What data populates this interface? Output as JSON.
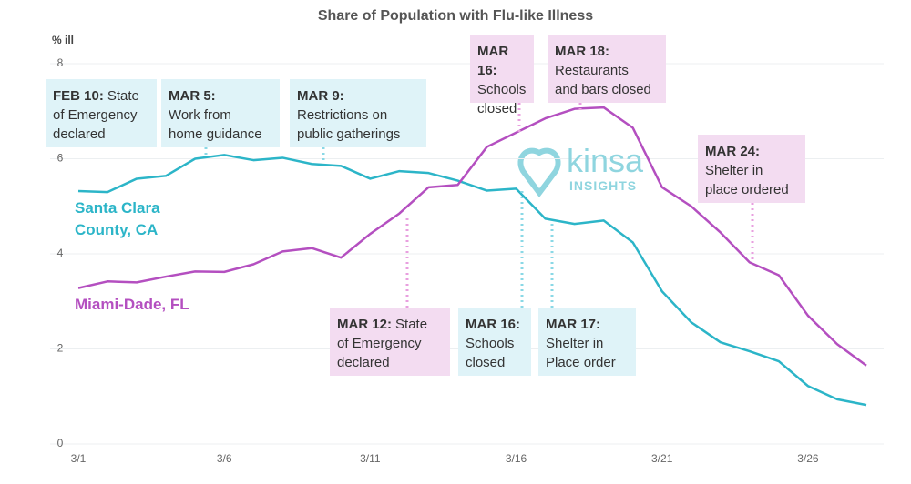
{
  "chart_data": {
    "type": "line",
    "title": "Share of Population with Flu-like Illness",
    "y_label": "% ill",
    "categories": [
      "3/1",
      null,
      null,
      null,
      null,
      "3/6",
      null,
      null,
      null,
      null,
      "3/11",
      null,
      null,
      null,
      null,
      "3/16",
      null,
      null,
      null,
      null,
      "3/21",
      null,
      null,
      null,
      null,
      "3/26",
      null,
      null
    ],
    "series": [
      {
        "name": "Santa Clara County, CA",
        "color": "#2cb5c8",
        "values": [
          5.32,
          5.3,
          5.58,
          5.64,
          6.0,
          6.08,
          5.97,
          6.02,
          5.89,
          5.85,
          5.58,
          5.74,
          5.7,
          5.54,
          5.33,
          5.37,
          4.74,
          4.63,
          4.7,
          4.24,
          3.21,
          2.56,
          2.14,
          1.95,
          1.74,
          1.22,
          0.94,
          0.82
        ]
      },
      {
        "name": "Miami-Dade, FL",
        "color": "#b44fc0",
        "values": [
          3.28,
          3.42,
          3.4,
          3.52,
          3.63,
          3.62,
          3.78,
          4.05,
          4.12,
          3.92,
          4.42,
          4.85,
          5.4,
          5.45,
          6.25,
          6.55,
          6.85,
          7.05,
          7.08,
          6.65,
          5.4,
          5.0,
          4.45,
          3.82,
          3.55,
          2.7,
          2.1,
          1.65
        ]
      }
    ],
    "ylim": [
      0,
      8
    ],
    "yticks": [
      0,
      2,
      4,
      6,
      8
    ],
    "grid": true,
    "annotations": [
      {
        "label": "FEB 10:",
        "lines": [
          "State",
          "of Emergency",
          "declared"
        ],
        "color": "#dff3f8"
      },
      {
        "label": "MAR 5:",
        "lines": [
          "Work from",
          "home guidance"
        ],
        "color": "#dff3f8"
      },
      {
        "label": "MAR 9:",
        "lines": [
          "Restrictions on",
          "public gatherings"
        ],
        "color": "#dff3f8"
      },
      {
        "label": "MAR 16:",
        "lines": [
          "Schools",
          "closed"
        ],
        "color": "#f3dcf1"
      },
      {
        "label": "MAR 18:",
        "lines": [
          "Restaurants",
          "and bars closed"
        ],
        "color": "#f3dcf1"
      },
      {
        "label": "MAR 24:",
        "lines": [
          "Shelter in",
          "place ordered"
        ],
        "color": "#f3dcf1"
      },
      {
        "label": "MAR 12:",
        "lines": [
          "State",
          "of Emergency",
          "declared"
        ],
        "color": "#f3dcf1"
      },
      {
        "label": "MAR 16:",
        "lines": [
          "Schools",
          "closed"
        ],
        "color": "#dff3f8"
      },
      {
        "label": "MAR 17:",
        "lines": [
          "Shelter in",
          "Place order"
        ],
        "color": "#dff3f8"
      }
    ],
    "watermark": [
      "kinsa",
      "INSIGHTS"
    ]
  }
}
